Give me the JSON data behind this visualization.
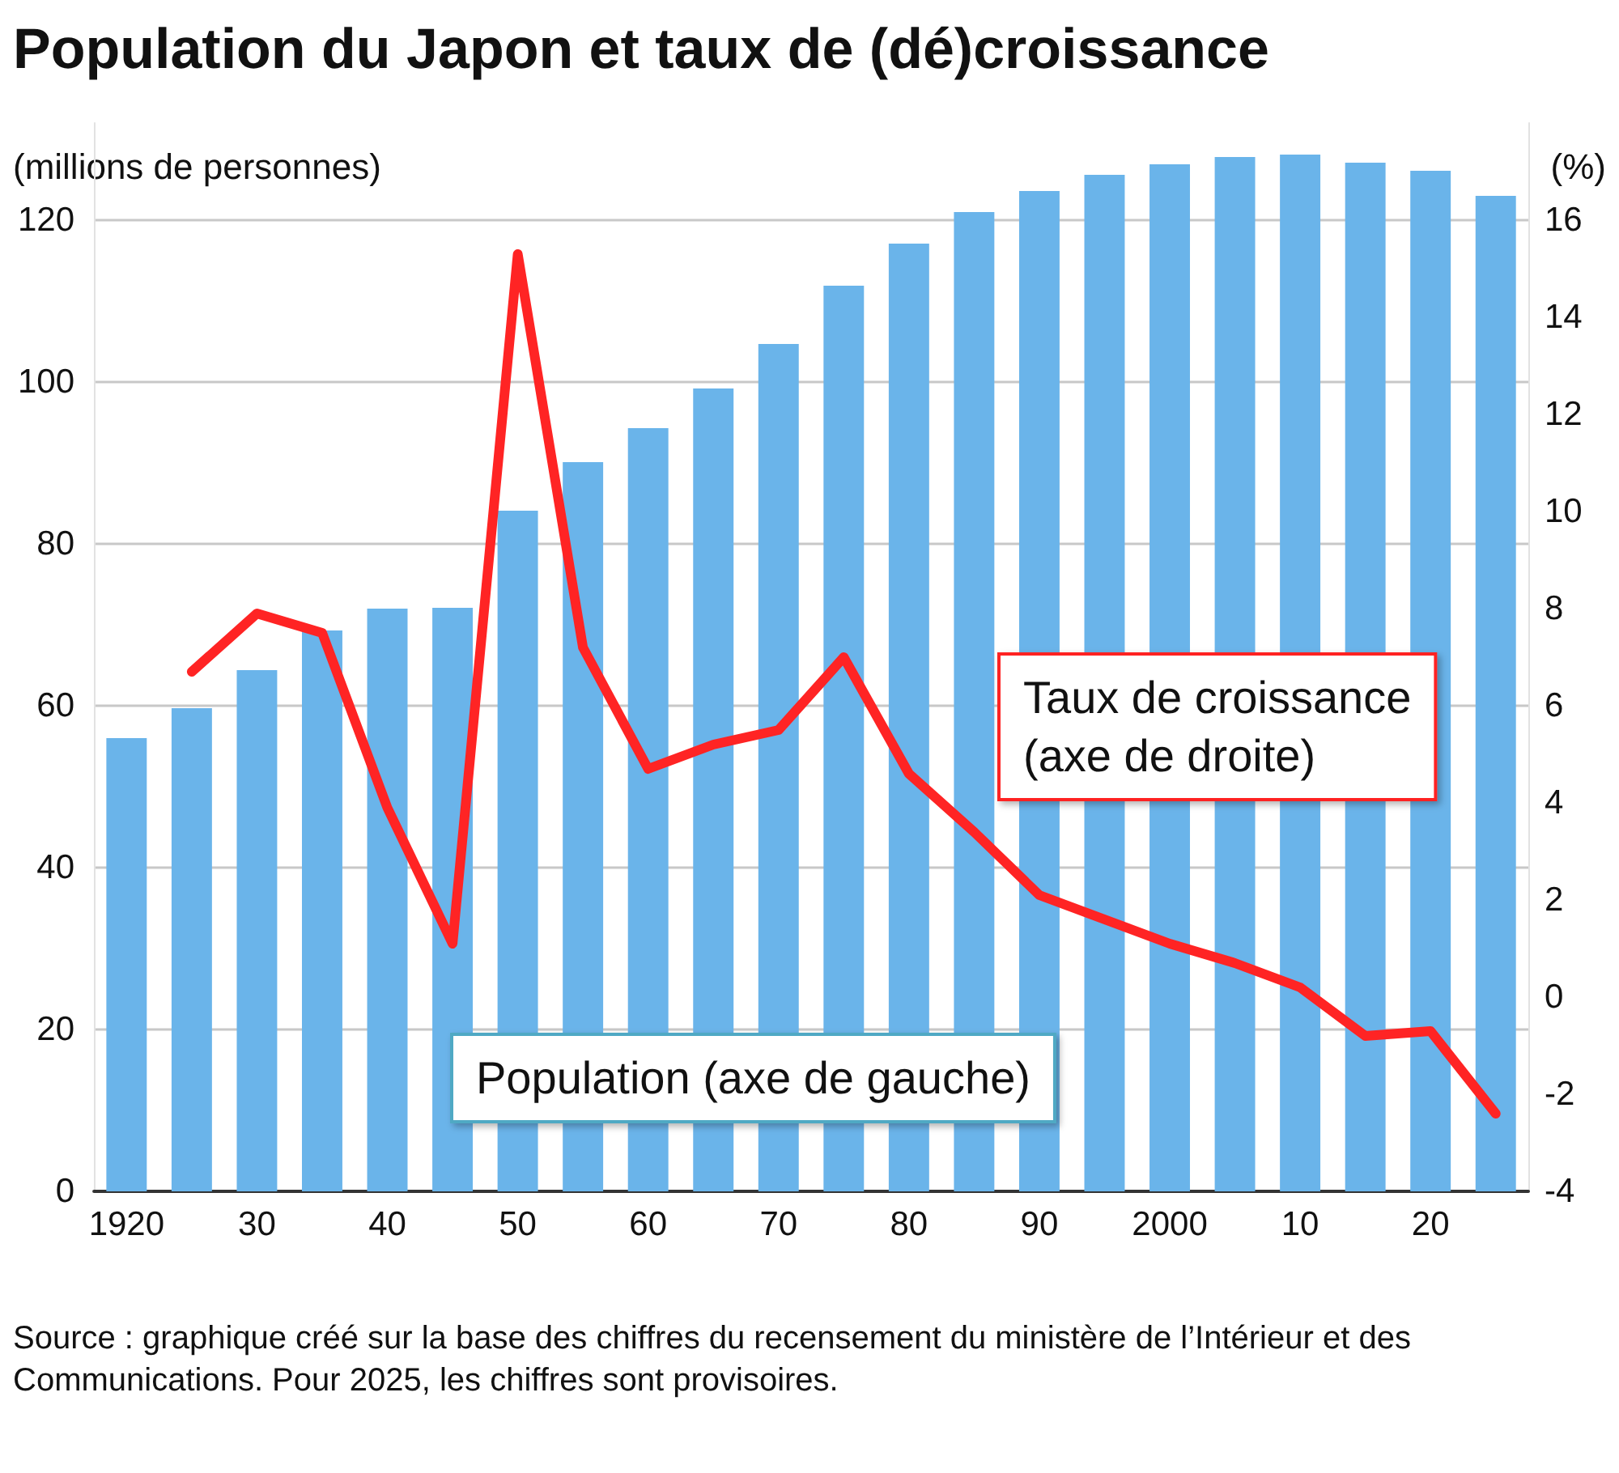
{
  "chart_data": {
    "type": "bar",
    "title": "Population du Japon et taux de (dé)croissance",
    "ylabel": "(millions de personnes)",
    "y2label": "(%)",
    "categories": [
      "1920",
      null,
      "30",
      null,
      "40",
      null,
      "50",
      null,
      "60",
      null,
      "70",
      null,
      "80",
      null,
      "90",
      null,
      "2000",
      null,
      "10",
      null,
      "20",
      null
    ],
    "series": [
      {
        "name": "Population (axe de gauche)",
        "color": "#6ab4ea",
        "values": [
          56,
          59.7,
          64.4,
          69.3,
          72,
          72.1,
          84.1,
          90.1,
          94.3,
          99.2,
          104.7,
          111.9,
          117.1,
          121,
          123.6,
          125.6,
          126.9,
          127.8,
          128.1,
          127.1,
          126.1,
          123
        ]
      },
      {
        "name": "Taux de croissance (axe de droite)",
        "type": "line",
        "axis": "y2",
        "color": "#ff2424",
        "values": [
          null,
          6.7,
          7.9,
          7.5,
          3.9,
          1.1,
          15.3,
          7.2,
          4.7,
          5.2,
          5.5,
          7.0,
          4.6,
          3.4,
          2.1,
          1.6,
          1.1,
          0.7,
          0.2,
          -0.8,
          -0.7,
          -2.4
        ]
      }
    ],
    "ylim": [
      0,
      132
    ],
    "yticks": [
      0,
      20,
      40,
      60,
      80,
      100,
      120
    ],
    "y2lim": [
      -4,
      18
    ],
    "y2ticks": [
      -4,
      -2,
      0,
      2,
      4,
      6,
      8,
      10,
      12,
      14,
      16
    ],
    "grid": "y",
    "marker": "none",
    "line_style": "solid",
    "legend": false,
    "annotations": [
      "Source : graphique créé sur la base des chiffres du recensement du ministère de l’Intérieur et des Communications. Pour 2025, les chiffres sont provisoires."
    ]
  }
}
